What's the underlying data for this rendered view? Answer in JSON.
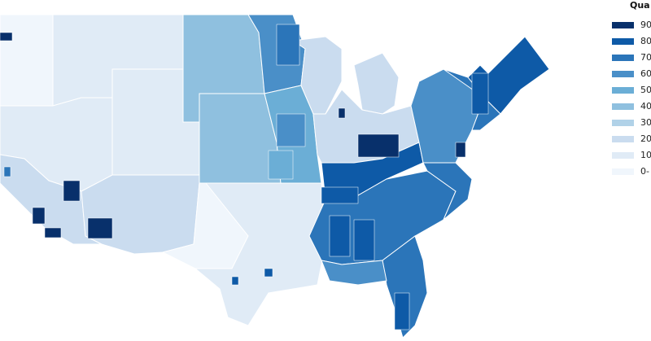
{
  "legend": {
    "title": "Qua",
    "items": [
      {
        "label": "90",
        "color": "#08306b"
      },
      {
        "label": "80",
        "color": "#0e5aa7"
      },
      {
        "label": "70",
        "color": "#2b75b9"
      },
      {
        "label": "60",
        "color": "#4a8fc8"
      },
      {
        "label": "50",
        "color": "#6baed6"
      },
      {
        "label": "40",
        "color": "#8fc0df"
      },
      {
        "label": "30",
        "color": "#b1d2e8"
      },
      {
        "label": "20",
        "color": "#cadcef"
      },
      {
        "label": "10",
        "color": "#e0ebf6"
      },
      {
        "label": "0-",
        "color": "#f0f6fc"
      }
    ]
  },
  "map": {
    "background": "#ffffff",
    "border_color": "#ffffff"
  }
}
